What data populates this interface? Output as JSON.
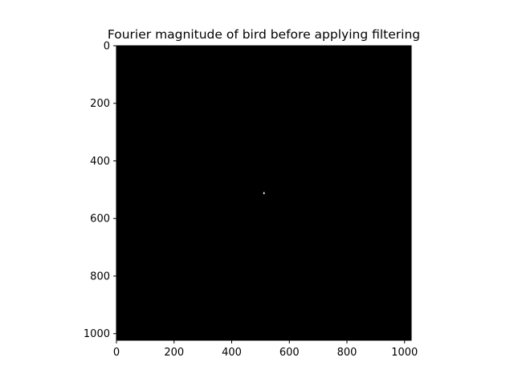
{
  "chart_data": {
    "type": "heatmap",
    "title": "Fourier magnitude of bird before applying filtering",
    "xlabel": "",
    "ylabel": "",
    "xlim": [
      0,
      1023
    ],
    "ylim": [
      1023,
      0
    ],
    "y_inverted": true,
    "colormap": "gray",
    "x_ticks": [
      0,
      200,
      400,
      600,
      800,
      1000
    ],
    "y_ticks": [
      0,
      200,
      400,
      600,
      800,
      1000
    ],
    "background_value": 0,
    "bright_points": [
      {
        "x": 512,
        "y": 512,
        "value": 1
      }
    ],
    "grid": false,
    "legend": "none",
    "colors": {
      "image_background": "#000000",
      "peak": "#ffffff"
    }
  }
}
